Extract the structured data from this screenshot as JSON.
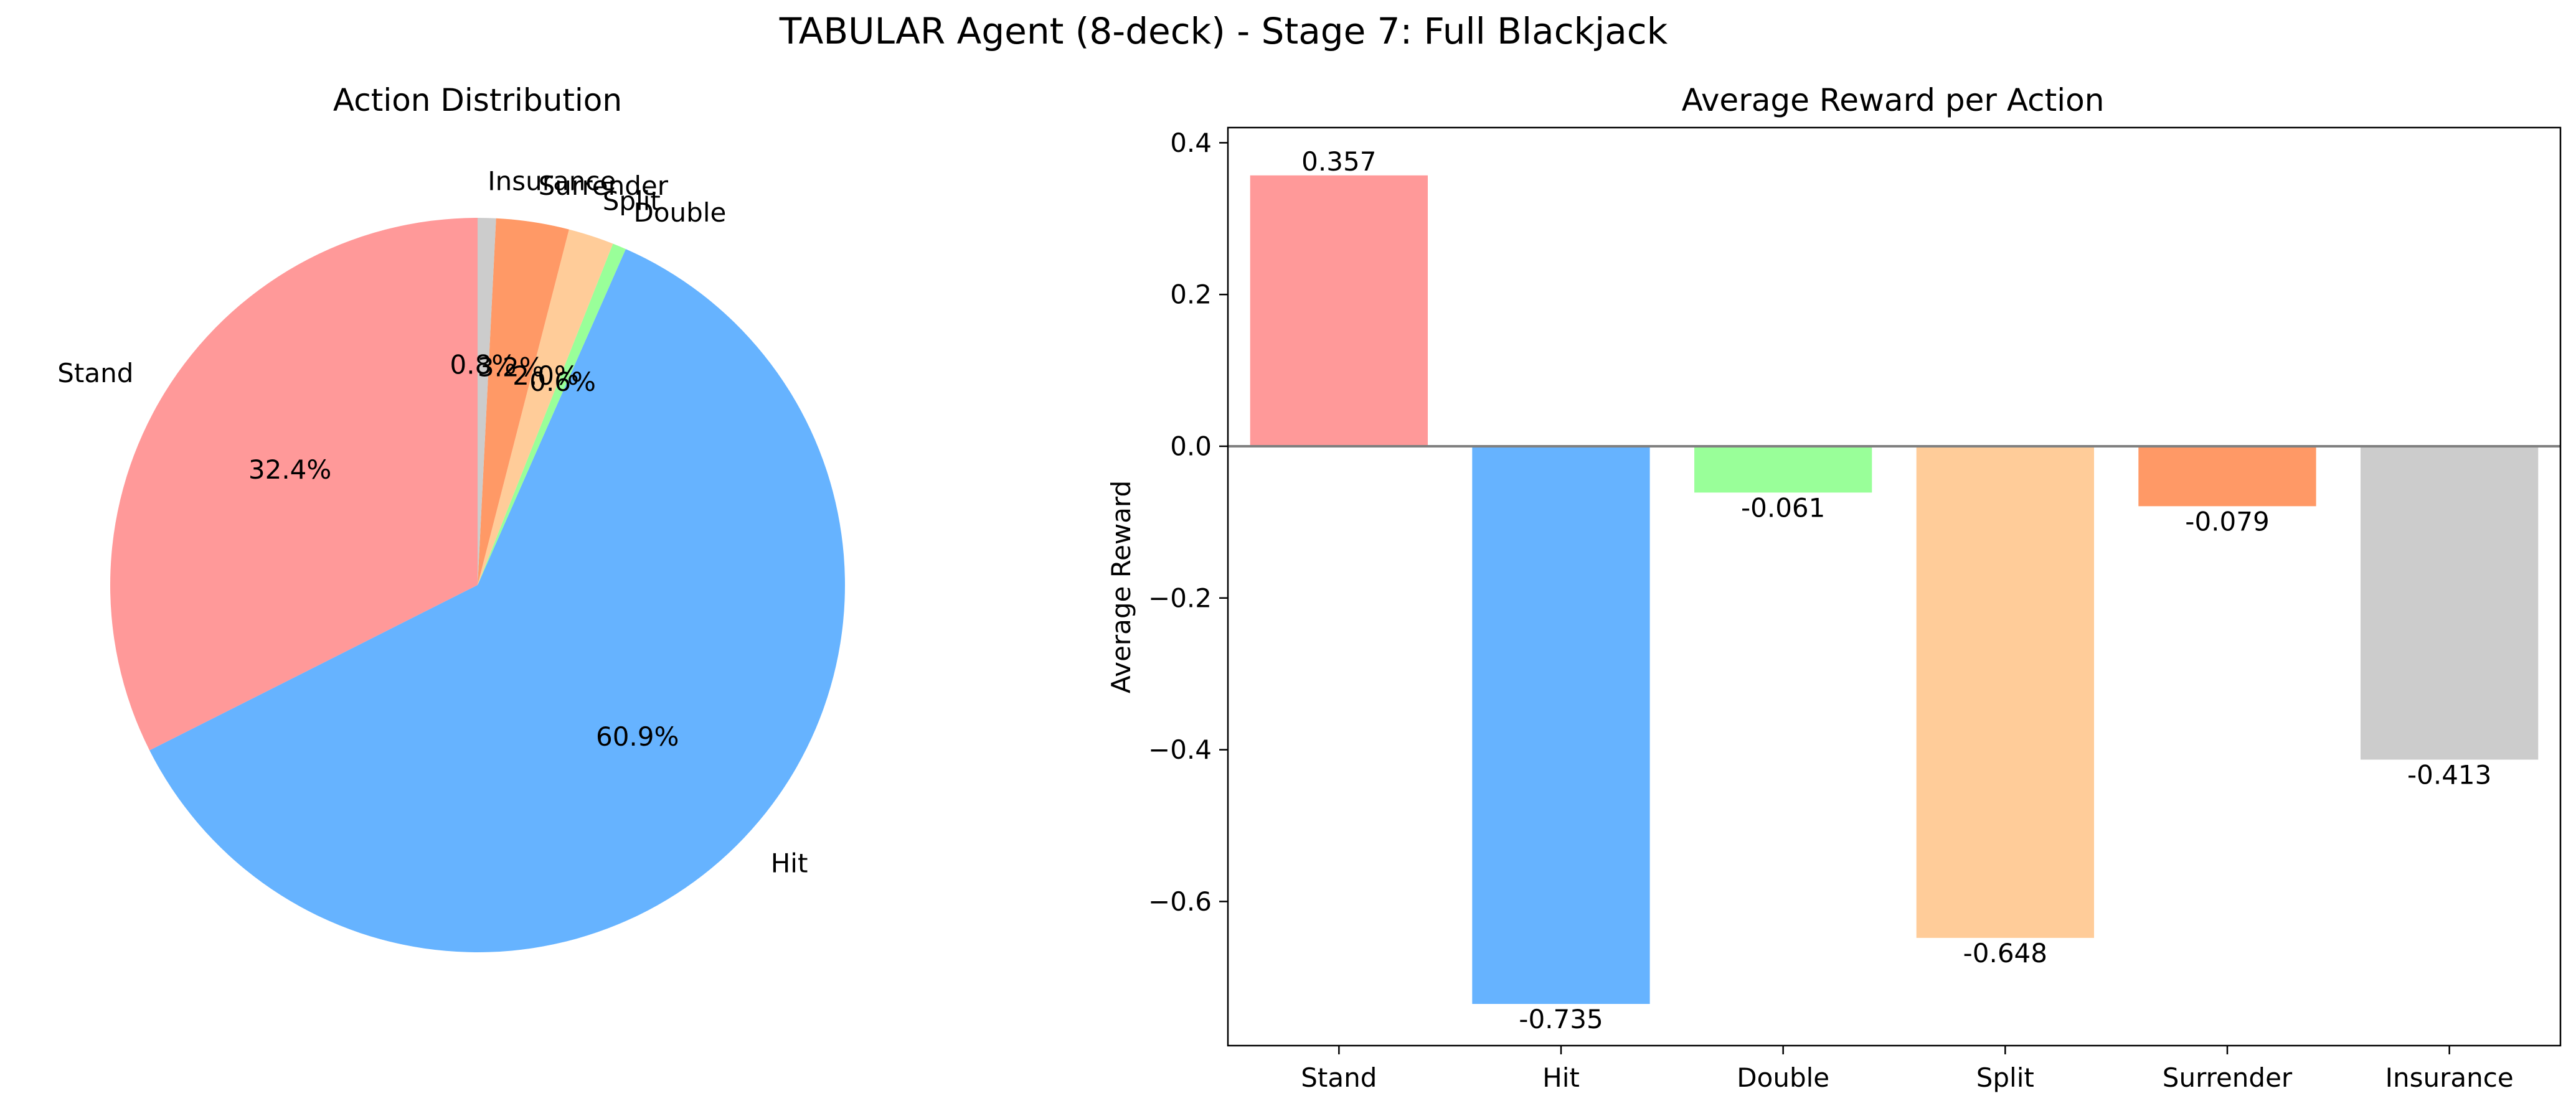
{
  "figure": {
    "title": "TABULAR Agent (8-deck) - Stage 7: Full Blackjack"
  },
  "chart_data": [
    {
      "type": "pie",
      "title": "Action Distribution",
      "labels": [
        "Stand",
        "Hit",
        "Double",
        "Split",
        "Surrender",
        "Insurance"
      ],
      "values": [
        32.4,
        60.9,
        0.6,
        2.0,
        3.2,
        0.8
      ],
      "pct_labels": [
        "32.4%",
        "60.9%",
        "0.6%",
        "2.0%",
        "3.2%",
        "0.8%"
      ],
      "colors": [
        "#ff9999",
        "#66b3ff",
        "#99ff99",
        "#ffcc99",
        "#ff9966",
        "#cccccc"
      ],
      "start_angle_deg": 90,
      "direction": "counterclockwise"
    },
    {
      "type": "bar",
      "title": "Average Reward per Action",
      "categories": [
        "Stand",
        "Hit",
        "Double",
        "Split",
        "Surrender",
        "Insurance"
      ],
      "values": [
        0.357,
        -0.735,
        -0.061,
        -0.648,
        -0.079,
        -0.413
      ],
      "value_labels": [
        "0.357",
        "-0.735",
        "-0.061",
        "-0.648",
        "-0.079",
        "-0.413"
      ],
      "colors": [
        "#ff9999",
        "#66b3ff",
        "#99ff99",
        "#ffcc99",
        "#ff9966",
        "#cccccc"
      ],
      "xlabel": "",
      "ylabel": "Average Reward",
      "ylim": [
        -0.79,
        0.42
      ],
      "yticks": [
        0.4,
        0.2,
        0.0,
        -0.2,
        -0.4,
        -0.6
      ],
      "ytick_labels": [
        "0.4",
        "0.2",
        "0.0",
        "−0.2",
        "−0.4",
        "−0.6"
      ],
      "zero_line": true,
      "grid": false
    }
  ]
}
